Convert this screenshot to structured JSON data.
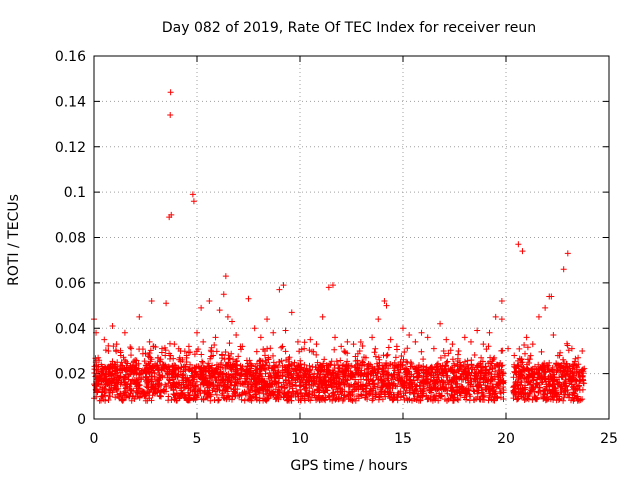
{
  "chart_data": {
    "type": "scatter",
    "title": "Day 082 of 2019, Rate Of TEC Index for receiver reun",
    "xlabel": "GPS time / hours",
    "ylabel": "ROTI / TECUs",
    "xlim": [
      0,
      25
    ],
    "ylim": [
      0,
      0.16
    ],
    "xticks": [
      0,
      5,
      10,
      15,
      20,
      25
    ],
    "xtick_labels": [
      "0",
      "5",
      "10",
      "15",
      "20",
      "25"
    ],
    "yticks": [
      0,
      0.02,
      0.04,
      0.06,
      0.08,
      0.1,
      0.12,
      0.14,
      0.16
    ],
    "ytick_labels": [
      "0",
      "0.02",
      "0.04",
      "0.06",
      "0.08",
      "0.1",
      "0.12",
      "0.14",
      "0.16"
    ],
    "grid": true,
    "marker": "+",
    "series_color": "#ff0000",
    "series": [
      {
        "name": "ROTI",
        "x": [
          0.0,
          0.1,
          0.2,
          0.35,
          0.5,
          0.7,
          0.9,
          1.1,
          1.3,
          1.5,
          1.8,
          2.0,
          2.2,
          2.5,
          2.7,
          2.9,
          3.1,
          3.3,
          3.5,
          3.65,
          3.7,
          3.72,
          3.75,
          3.9,
          4.2,
          4.5,
          4.8,
          4.85,
          5.0,
          5.3,
          5.6,
          5.9,
          6.1,
          6.3,
          6.5,
          6.7,
          6.9,
          7.2,
          7.5,
          7.8,
          8.1,
          8.4,
          8.7,
          9.0,
          9.3,
          9.6,
          9.9,
          10.2,
          10.5,
          10.8,
          11.1,
          11.4,
          11.7,
          12.0,
          12.3,
          12.6,
          12.9,
          13.2,
          13.5,
          13.8,
          14.1,
          14.4,
          14.7,
          15.0,
          15.3,
          15.6,
          15.9,
          16.2,
          16.5,
          16.8,
          17.1,
          17.4,
          17.7,
          18.0,
          18.3,
          18.6,
          18.9,
          19.2,
          19.5,
          19.8,
          20.1,
          20.4,
          20.6,
          20.8,
          21.0,
          21.3,
          21.6,
          21.9,
          22.1,
          22.3,
          22.6,
          22.8,
          23.0,
          23.2,
          23.5,
          23.7,
          6.4,
          5.2,
          9.2,
          11.6,
          14.2,
          19.8,
          22.2,
          2.8
        ],
        "y": [
          0.044,
          0.038,
          0.027,
          0.024,
          0.035,
          0.03,
          0.041,
          0.033,
          0.028,
          0.038,
          0.031,
          0.026,
          0.045,
          0.029,
          0.034,
          0.032,
          0.027,
          0.031,
          0.051,
          0.089,
          0.134,
          0.144,
          0.09,
          0.033,
          0.03,
          0.028,
          0.099,
          0.096,
          0.038,
          0.034,
          0.052,
          0.036,
          0.048,
          0.055,
          0.045,
          0.043,
          0.037,
          0.032,
          0.053,
          0.04,
          0.036,
          0.044,
          0.038,
          0.057,
          0.039,
          0.047,
          0.034,
          0.031,
          0.035,
          0.033,
          0.045,
          0.058,
          0.036,
          0.032,
          0.034,
          0.033,
          0.03,
          0.027,
          0.036,
          0.044,
          0.052,
          0.035,
          0.032,
          0.04,
          0.037,
          0.034,
          0.038,
          0.036,
          0.031,
          0.042,
          0.035,
          0.033,
          0.03,
          0.036,
          0.034,
          0.039,
          0.033,
          0.038,
          0.045,
          0.052,
          0.031,
          0.028,
          0.077,
          0.074,
          0.036,
          0.033,
          0.045,
          0.049,
          0.054,
          0.037,
          0.028,
          0.066,
          0.073,
          0.031,
          0.027,
          0.03,
          0.063,
          0.049,
          0.059,
          0.059,
          0.05,
          0.044,
          0.054,
          0.052
        ]
      }
    ]
  }
}
